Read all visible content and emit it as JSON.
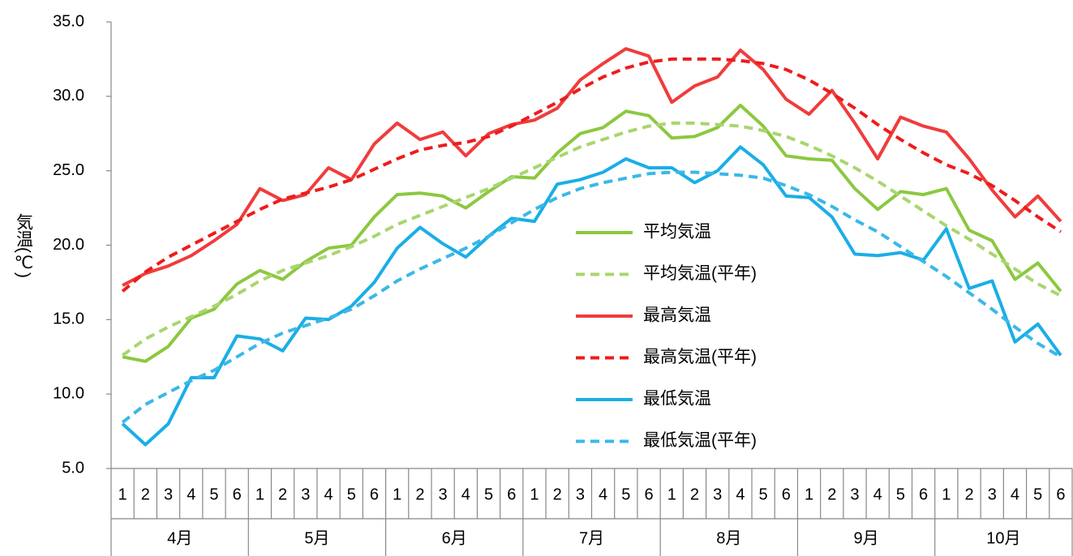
{
  "chart_data": {
    "type": "line",
    "y_label": "気温(℃)",
    "categories": [
      "1",
      "2",
      "3",
      "4",
      "5",
      "6",
      "1",
      "2",
      "3",
      "4",
      "5",
      "6",
      "1",
      "2",
      "3",
      "4",
      "5",
      "6",
      "1",
      "2",
      "3",
      "4",
      "5",
      "6",
      "1",
      "2",
      "3",
      "4",
      "5",
      "6",
      "1",
      "2",
      "3",
      "4",
      "5",
      "6",
      "1",
      "2",
      "3",
      "4",
      "5",
      "6"
    ],
    "groups": [
      "4月",
      "5月",
      "6月",
      "7月",
      "8月",
      "9月",
      "10月"
    ],
    "ylim": [
      5,
      35
    ],
    "yticks": [
      {
        "value": 5,
        "label": "5.0"
      },
      {
        "value": 10,
        "label": "10.0"
      },
      {
        "value": 15,
        "label": "15.0"
      },
      {
        "value": 20,
        "label": "20.0"
      },
      {
        "value": 25,
        "label": "25.0"
      },
      {
        "value": 30,
        "label": "30.0"
      },
      {
        "value": 35,
        "label": "35.0"
      }
    ],
    "grid": false,
    "series": [
      {
        "name": "平均気温",
        "color": "#8cc840",
        "dashed": false,
        "values": [
          12.5,
          12.2,
          13.2,
          15.1,
          15.7,
          17.4,
          18.3,
          17.7,
          18.9,
          19.8,
          20.0,
          21.9,
          23.4,
          23.5,
          23.3,
          22.5,
          23.6,
          24.6,
          24.5,
          26.2,
          27.5,
          27.9,
          29.0,
          28.7,
          27.2,
          27.3,
          27.9,
          29.4,
          28.0,
          26.0,
          25.8,
          25.7,
          23.8,
          22.4,
          23.6,
          23.4,
          23.8,
          21.0,
          20.3,
          17.7,
          18.8,
          16.9
        ]
      },
      {
        "name": "平均気温(平年)",
        "color": "#a8d66e",
        "dashed": true,
        "values": [
          12.6,
          13.7,
          14.5,
          15.2,
          15.9,
          16.7,
          17.6,
          18.3,
          18.8,
          19.3,
          19.9,
          20.6,
          21.4,
          22.0,
          22.6,
          23.2,
          23.8,
          24.5,
          25.2,
          25.9,
          26.6,
          27.1,
          27.6,
          28.0,
          28.2,
          28.2,
          28.1,
          28.0,
          27.7,
          27.3,
          26.7,
          26.0,
          25.2,
          24.3,
          23.3,
          22.3,
          21.3,
          20.4,
          19.4,
          18.4,
          17.4,
          16.6
        ]
      },
      {
        "name": "最高気温",
        "color": "#f03c3c",
        "dashed": false,
        "values": [
          17.3,
          18.1,
          18.6,
          19.3,
          20.3,
          21.4,
          23.8,
          23.0,
          23.4,
          25.2,
          24.4,
          26.8,
          28.2,
          27.1,
          27.6,
          26.0,
          27.5,
          28.1,
          28.4,
          29.2,
          31.1,
          32.2,
          33.2,
          32.7,
          29.6,
          30.7,
          31.3,
          33.1,
          31.8,
          29.8,
          28.8,
          30.4,
          28.2,
          25.8,
          28.6,
          28.0,
          27.6,
          25.8,
          23.7,
          21.9,
          23.3,
          21.6
        ]
      },
      {
        "name": "最高気温(平年)",
        "color": "#ee1c1c",
        "dashed": true,
        "values": [
          16.9,
          18.2,
          19.2,
          20.0,
          20.8,
          21.6,
          22.4,
          23.1,
          23.5,
          23.9,
          24.4,
          25.1,
          25.8,
          26.4,
          26.7,
          26.9,
          27.3,
          28.0,
          28.8,
          29.6,
          30.5,
          31.3,
          31.9,
          32.3,
          32.5,
          32.5,
          32.5,
          32.4,
          32.2,
          31.8,
          31.1,
          30.2,
          29.2,
          28.1,
          27.1,
          26.2,
          25.4,
          24.8,
          24.0,
          23.0,
          21.9,
          20.9
        ]
      },
      {
        "name": "最低気温",
        "color": "#1aaee6",
        "dashed": false,
        "values": [
          8.0,
          6.6,
          8.0,
          11.1,
          11.1,
          13.9,
          13.7,
          12.9,
          15.1,
          15.0,
          15.9,
          17.5,
          19.8,
          21.2,
          20.1,
          19.2,
          20.6,
          21.8,
          21.6,
          24.1,
          24.4,
          24.9,
          25.8,
          25.2,
          25.2,
          24.2,
          25.0,
          26.6,
          25.4,
          23.3,
          23.2,
          21.9,
          19.4,
          19.3,
          19.5,
          19.0,
          21.1,
          17.1,
          17.6,
          13.5,
          14.7,
          12.6
        ]
      },
      {
        "name": "最低気温(平年)",
        "color": "#3ab8e8",
        "dashed": true,
        "values": [
          8.1,
          9.3,
          10.1,
          10.9,
          11.6,
          12.5,
          13.4,
          14.1,
          14.6,
          15.1,
          15.7,
          16.6,
          17.6,
          18.4,
          19.1,
          19.8,
          20.6,
          21.5,
          22.4,
          23.2,
          23.8,
          24.2,
          24.5,
          24.8,
          24.9,
          24.9,
          24.8,
          24.7,
          24.5,
          24.0,
          23.4,
          22.6,
          21.7,
          20.9,
          19.9,
          18.9,
          17.9,
          16.8,
          15.7,
          14.5,
          13.4,
          12.5
        ]
      }
    ]
  }
}
